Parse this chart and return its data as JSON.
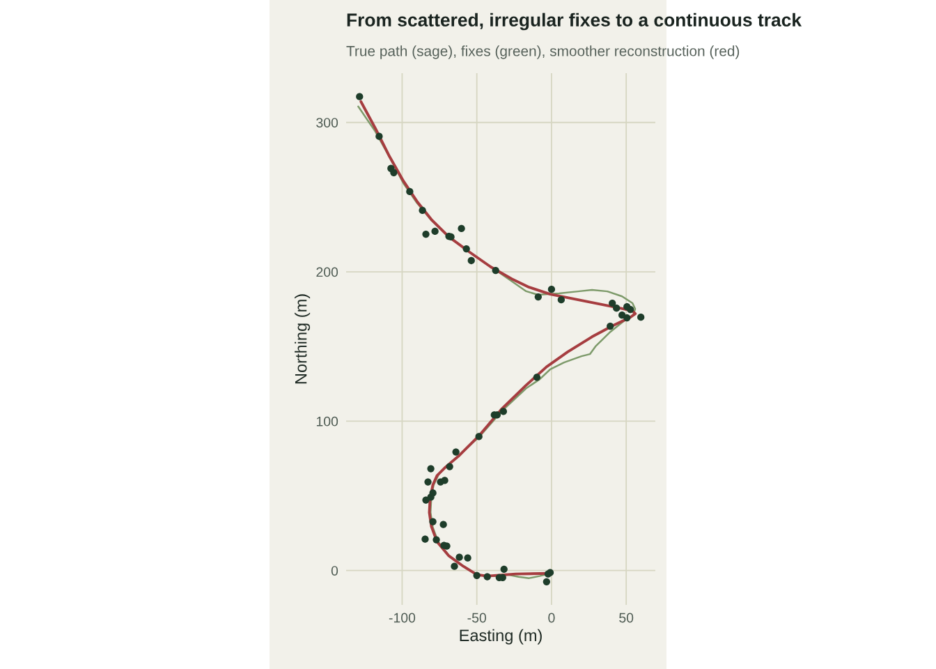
{
  "chart_data": {
    "type": "line",
    "title": "From scattered, irregular fixes to a continuous track",
    "subtitle": "True path (sage), fixes (green), smoother reconstruction (red)",
    "xlabel": "Easting (m)",
    "ylabel": "Northing (m)",
    "xlim": [
      -137.5,
      69.5
    ],
    "ylim": [
      -23,
      333
    ],
    "xticks": [
      -100,
      -50,
      0,
      50
    ],
    "yticks": [
      0,
      100,
      200,
      300
    ],
    "grid": true,
    "series": [
      {
        "color": "#7d9a6a",
        "marker": "none",
        "line_style": "solid",
        "x": [
          -1,
          -8,
          -15,
          -22,
          -29,
          -36,
          -43,
          -50,
          -59,
          -68.7,
          -76,
          -79.5,
          -81,
          -80.5,
          -79,
          -75.5,
          -70,
          -61,
          -48,
          -33,
          -17,
          -8,
          -1,
          8.4,
          20.1,
          25.7,
          29.4,
          38.8,
          48.1,
          54.7,
          56,
          54.2,
          47.2,
          37.4,
          27.1,
          17.8,
          5,
          -8.9,
          -17,
          -27,
          -40,
          -54.7,
          -68,
          -80,
          -90,
          -99,
          -108,
          -118,
          -129.4
        ],
        "values": [
          -2,
          -3.7,
          -5.1,
          -4.2,
          -2.8,
          -3.7,
          -3.7,
          -2.5,
          3,
          10,
          19.5,
          29,
          39,
          48,
          57,
          64.5,
          70,
          78,
          90,
          107,
          122,
          128,
          134.6,
          139.3,
          143.5,
          144.9,
          150,
          159.3,
          166.8,
          171,
          175.2,
          179,
          183.6,
          186.9,
          187.9,
          186.9,
          185.6,
          184.6,
          187,
          194,
          203,
          213,
          223,
          234,
          246,
          259,
          276,
          294,
          310.7
        ]
      },
      {
        "color": "#a63d40",
        "marker": "none",
        "line_style": "solid",
        "x": [
          -0.9,
          -24,
          -43,
          -50,
          -59,
          -68.7,
          -76.6,
          -80.4,
          -81.8,
          -81.3,
          -79.4,
          -76.6,
          -71,
          -61.7,
          -48.6,
          -33.6,
          -17.3,
          -3.3,
          10.7,
          27.1,
          41.1,
          52.8,
          56.1,
          54.2,
          45.8,
          31.8,
          13.1,
          -0.9,
          -15,
          -26.6,
          -40.7,
          -54.7,
          -68.7,
          -80.4,
          -89.7,
          -99.1,
          -108.4,
          -117.8,
          -127.6
        ],
        "values": [
          -1.9,
          -2.3,
          -3.7,
          -2.8,
          2.8,
          9.8,
          19.2,
          29.4,
          38.8,
          48.1,
          57.5,
          63.6,
          69.2,
          77.1,
          90.2,
          107.9,
          123.8,
          136.4,
          146.3,
          156.5,
          164,
          169.6,
          172,
          173.8,
          175.7,
          178.5,
          182.2,
          185,
          189.7,
          195.3,
          203.3,
          213.1,
          223.4,
          235,
          246.7,
          260.7,
          277.1,
          295.8,
          314
        ]
      },
      {
        "type": "scatter",
        "color": "#1e3d2a",
        "marker": "circle",
        "x": [
          -0.9,
          -2.3,
          -3.3,
          -31.8,
          -32.7,
          -35,
          -43,
          -50,
          -65,
          -56.1,
          -61.7,
          -70.1,
          -72,
          -77.1,
          -84.6,
          -72.4,
          -79.4,
          -84.1,
          -80.8,
          -79.4,
          -82.7,
          -74.3,
          -71.5,
          -80.8,
          -68.2,
          -64,
          -48.6,
          -38.3,
          -36.4,
          -32.2,
          -9.8,
          39.3,
          50.5,
          47.2,
          59.8,
          52.8,
          50.5,
          43.5,
          40.7,
          6.5,
          0,
          -8.9,
          -37.4,
          -53.7,
          -57,
          -60.3,
          -67.3,
          -68.7,
          -78,
          -84.1,
          -86.4,
          -94.9,
          -105.6,
          -107.5,
          -115.4,
          -128.5
        ],
        "values": [
          -1.4,
          -2.3,
          -7.5,
          0.9,
          -4.7,
          -4.7,
          -4.2,
          -3.3,
          2.8,
          8.4,
          8.9,
          16.4,
          16.8,
          20.6,
          21,
          30.8,
          32.7,
          47.2,
          49.1,
          51.9,
          59.3,
          59.3,
          60.3,
          68.2,
          69.6,
          79.4,
          89.7,
          104.2,
          104.2,
          106.5,
          129.4,
          163.6,
          169.2,
          171,
          169.6,
          174.8,
          176.6,
          175.7,
          179,
          181.3,
          188.3,
          183.2,
          200.9,
          207.5,
          215.4,
          229,
          223.4,
          223.8,
          227.1,
          225.2,
          241.1,
          253.7,
          266.4,
          269.2,
          290.7,
          317.3
        ]
      }
    ]
  }
}
